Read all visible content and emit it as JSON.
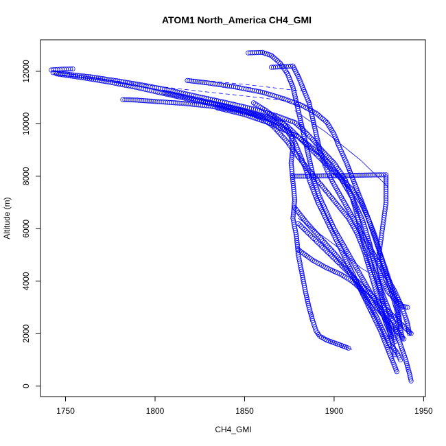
{
  "chart_data": {
    "type": "scatter",
    "title": "ATOM1 North_America CH4_GMI",
    "xlabel": "CH4_GMI",
    "ylabel": "Altitude (m)",
    "xlim": [
      1736,
      1951
    ],
    "ylim": [
      -400,
      13200
    ],
    "xticks": [
      1750,
      1800,
      1850,
      1900,
      1950
    ],
    "yticks": [
      0,
      2000,
      4000,
      6000,
      8000,
      10000,
      12000
    ],
    "grid": false,
    "marker": "open-circle",
    "colors": {
      "series": "#0000ff",
      "axes": "#000000"
    },
    "series": [
      {
        "points": [
          [
            1743,
            11950
          ],
          [
            1752,
            11880
          ],
          [
            1765,
            11780
          ],
          [
            1780,
            11620
          ],
          [
            1795,
            11450
          ],
          [
            1810,
            11250
          ],
          [
            1825,
            11020
          ],
          [
            1840,
            10800
          ],
          [
            1855,
            10560
          ],
          [
            1868,
            10300
          ],
          [
            1878,
            10050
          ],
          [
            1883,
            9750
          ],
          [
            1888,
            9400
          ],
          [
            1893,
            9000
          ],
          [
            1900,
            8500
          ],
          [
            1906,
            7900
          ],
          [
            1910,
            7200
          ],
          [
            1913,
            6500
          ],
          [
            1915,
            5800
          ],
          [
            1918,
            5100
          ],
          [
            1922,
            4400
          ],
          [
            1926,
            3700
          ],
          [
            1930,
            3000
          ],
          [
            1934,
            2300
          ],
          [
            1937,
            1600
          ],
          [
            1940,
            1000
          ],
          [
            1942,
            500
          ],
          [
            1943,
            200
          ]
        ]
      },
      {
        "points": [
          [
            1742,
            12050
          ],
          [
            1748,
            12080
          ],
          [
            1754,
            12090
          ]
        ]
      },
      {
        "points": [
          [
            1745,
            11900
          ],
          [
            1760,
            11750
          ],
          [
            1775,
            11580
          ],
          [
            1790,
            11380
          ],
          [
            1805,
            11150
          ],
          [
            1820,
            10920
          ],
          [
            1835,
            10700
          ],
          [
            1850,
            10480
          ],
          [
            1862,
            10250
          ],
          [
            1872,
            10000
          ],
          [
            1876,
            9600
          ],
          [
            1877,
            9100
          ],
          [
            1876,
            8500
          ],
          [
            1877,
            7800
          ],
          [
            1878,
            7100
          ],
          [
            1877,
            6400
          ],
          [
            1879,
            5700
          ],
          [
            1880,
            5000
          ],
          [
            1882,
            4300
          ],
          [
            1884,
            3600
          ],
          [
            1886,
            3000
          ],
          [
            1888,
            2500
          ],
          [
            1890,
            2100
          ],
          [
            1892,
            1900
          ],
          [
            1896,
            1750
          ],
          [
            1902,
            1600
          ],
          [
            1908,
            1450
          ]
        ]
      },
      {
        "points": [
          [
            1782,
            10920
          ],
          [
            1790,
            10900
          ],
          [
            1800,
            10850
          ],
          [
            1815,
            10780
          ],
          [
            1830,
            10680
          ],
          [
            1845,
            10520
          ],
          [
            1858,
            10300
          ],
          [
            1868,
            10050
          ],
          [
            1874,
            9700
          ],
          [
            1878,
            9300
          ],
          [
            1881,
            8800
          ],
          [
            1884,
            8300
          ],
          [
            1887,
            7700
          ],
          [
            1891,
            7000
          ],
          [
            1896,
            6300
          ],
          [
            1901,
            5600
          ],
          [
            1906,
            4900
          ],
          [
            1911,
            4200
          ],
          [
            1916,
            3500
          ],
          [
            1921,
            2800
          ],
          [
            1926,
            2100
          ],
          [
            1930,
            1400
          ],
          [
            1933,
            900
          ],
          [
            1935,
            550
          ]
        ]
      },
      {
        "points": [
          [
            1805,
            11200
          ],
          [
            1815,
            11050
          ],
          [
            1825,
            10900
          ],
          [
            1838,
            10700
          ],
          [
            1850,
            10500
          ],
          [
            1860,
            10200
          ],
          [
            1866,
            9900
          ],
          [
            1870,
            9600
          ],
          [
            1874,
            9300
          ],
          [
            1878,
            8900
          ],
          [
            1884,
            8400
          ],
          [
            1890,
            7900
          ],
          [
            1896,
            7400
          ],
          [
            1902,
            6900
          ],
          [
            1908,
            6400
          ],
          [
            1913,
            5800
          ],
          [
            1917,
            5100
          ],
          [
            1920,
            4400
          ],
          [
            1923,
            3700
          ],
          [
            1926,
            3000
          ],
          [
            1929,
            2400
          ],
          [
            1932,
            1900
          ]
        ]
      },
      {
        "points": [
          [
            1818,
            11650
          ],
          [
            1830,
            11550
          ],
          [
            1845,
            11400
          ],
          [
            1860,
            11200
          ],
          [
            1872,
            10950
          ],
          [
            1882,
            10700
          ],
          [
            1890,
            10400
          ],
          [
            1896,
            10050
          ],
          [
            1900,
            9600
          ],
          [
            1903,
            9100
          ],
          [
            1907,
            8500
          ],
          [
            1911,
            7800
          ],
          [
            1915,
            7100
          ],
          [
            1919,
            6400
          ],
          [
            1923,
            5700
          ],
          [
            1926,
            5000
          ],
          [
            1929,
            4300
          ],
          [
            1932,
            3600
          ],
          [
            1935,
            2900
          ],
          [
            1937,
            2300
          ],
          [
            1938,
            1800
          ]
        ]
      },
      {
        "points": [
          [
            1852,
            12700
          ],
          [
            1860,
            12720
          ],
          [
            1865,
            12600
          ],
          [
            1870,
            12300
          ],
          [
            1874,
            11900
          ],
          [
            1877,
            11400
          ],
          [
            1879,
            10800
          ],
          [
            1881,
            10200
          ],
          [
            1883,
            9600
          ],
          [
            1885,
            9000
          ],
          [
            1887,
            8400
          ],
          [
            1889,
            7800
          ],
          [
            1892,
            7200
          ],
          [
            1896,
            6600
          ],
          [
            1900,
            6000
          ],
          [
            1905,
            5400
          ],
          [
            1910,
            4800
          ],
          [
            1915,
            4200
          ],
          [
            1920,
            3600
          ],
          [
            1925,
            3000
          ],
          [
            1929,
            2500
          ],
          [
            1932,
            2100
          ],
          [
            1934,
            1700
          ]
        ]
      },
      {
        "points": [
          [
            1865,
            12150
          ],
          [
            1872,
            12180
          ],
          [
            1877,
            12200
          ],
          [
            1880,
            11800
          ],
          [
            1883,
            11300
          ],
          [
            1886,
            10800
          ],
          [
            1888,
            10200
          ],
          [
            1890,
            9600
          ],
          [
            1892,
            9000
          ],
          [
            1895,
            8400
          ],
          [
            1899,
            7800
          ],
          [
            1904,
            7200
          ],
          [
            1909,
            6600
          ],
          [
            1914,
            6000
          ],
          [
            1919,
            5400
          ],
          [
            1924,
            4800
          ],
          [
            1929,
            4200
          ],
          [
            1934,
            3600
          ],
          [
            1938,
            3000
          ],
          [
            1941,
            2400
          ],
          [
            1942,
            2000
          ]
        ]
      },
      {
        "points": [
          [
            1877,
            8000
          ],
          [
            1885,
            8000
          ],
          [
            1895,
            8020
          ],
          [
            1905,
            8020
          ],
          [
            1915,
            8040
          ],
          [
            1925,
            8050
          ],
          [
            1929,
            8050
          ],
          [
            1929,
            7500
          ],
          [
            1929,
            7000
          ],
          [
            1928,
            6500
          ],
          [
            1927,
            6000
          ],
          [
            1926,
            5500
          ],
          [
            1925,
            5000
          ],
          [
            1925,
            4500
          ],
          [
            1927,
            4000
          ],
          [
            1930,
            3600
          ],
          [
            1934,
            3300
          ],
          [
            1938,
            3050
          ],
          [
            1941,
            3000
          ]
        ]
      },
      {
        "points": [
          [
            1855,
            10800
          ],
          [
            1862,
            10500
          ],
          [
            1868,
            10200
          ],
          [
            1874,
            9900
          ],
          [
            1880,
            9500
          ],
          [
            1886,
            9100
          ],
          [
            1892,
            8700
          ],
          [
            1898,
            8300
          ],
          [
            1904,
            7900
          ],
          [
            1910,
            7500
          ],
          [
            1915,
            7000
          ],
          [
            1919,
            6400
          ],
          [
            1922,
            5800
          ],
          [
            1925,
            5200
          ],
          [
            1928,
            4600
          ],
          [
            1931,
            4000
          ],
          [
            1934,
            3400
          ],
          [
            1936,
            2800
          ],
          [
            1937,
            2200
          ]
        ]
      },
      {
        "points": [
          [
            1878,
            6800
          ],
          [
            1885,
            6200
          ],
          [
            1893,
            5600
          ],
          [
            1901,
            5000
          ],
          [
            1908,
            4400
          ],
          [
            1914,
            3800
          ],
          [
            1919,
            3200
          ],
          [
            1924,
            2600
          ],
          [
            1928,
            2000
          ],
          [
            1931,
            1600
          ],
          [
            1935,
            1300
          ],
          [
            1937,
            1000
          ]
        ]
      },
      {
        "points": [
          [
            1880,
            5200
          ],
          [
            1888,
            4800
          ],
          [
            1896,
            4500
          ],
          [
            1904,
            4250
          ],
          [
            1910,
            4000
          ],
          [
            1915,
            3700
          ],
          [
            1920,
            3300
          ],
          [
            1925,
            2900
          ],
          [
            1930,
            2500
          ],
          [
            1935,
            2100
          ],
          [
            1939,
            1800
          ]
        ]
      },
      {
        "points": [
          [
            1880,
            6200
          ],
          [
            1886,
            5800
          ],
          [
            1892,
            5400
          ],
          [
            1898,
            5000
          ],
          [
            1904,
            4600
          ],
          [
            1910,
            4200
          ],
          [
            1916,
            3800
          ],
          [
            1922,
            3400
          ],
          [
            1928,
            3000
          ],
          [
            1934,
            2600
          ],
          [
            1940,
            2200
          ],
          [
            1943,
            2000
          ]
        ]
      },
      {
        "points": [
          [
            1835,
            10600
          ],
          [
            1850,
            10350
          ],
          [
            1865,
            10000
          ],
          [
            1880,
            9500
          ],
          [
            1893,
            8800
          ],
          [
            1903,
            8000
          ],
          [
            1910,
            7200
          ],
          [
            1916,
            6300
          ],
          [
            1920,
            5400
          ],
          [
            1923,
            4500
          ],
          [
            1926,
            3600
          ],
          [
            1929,
            2700
          ],
          [
            1932,
            1800
          ],
          [
            1934,
            1200
          ]
        ]
      }
    ],
    "lines": [
      {
        "points": [
          [
            1748,
            11860
          ],
          [
            1775,
            11660
          ],
          [
            1800,
            11440
          ],
          [
            1825,
            11240
          ],
          [
            1850,
            11060
          ],
          [
            1870,
            10900
          ],
          [
            1876,
            10850
          ]
        ]
      },
      {
        "points": [
          [
            1820,
            11700
          ],
          [
            1850,
            11500
          ],
          [
            1875,
            11300
          ],
          [
            1882,
            11250
          ]
        ]
      },
      {
        "points": [
          [
            1880,
            6400
          ],
          [
            1900,
            5400
          ],
          [
            1915,
            4500
          ],
          [
            1920,
            4300
          ]
        ]
      },
      {
        "points": [
          [
            1890,
            2000
          ],
          [
            1900,
            1650
          ],
          [
            1910,
            1400
          ]
        ]
      },
      {
        "points": [
          [
            1878,
            10500
          ],
          [
            1895,
            9700
          ],
          [
            1915,
            8600
          ],
          [
            1930,
            7600
          ]
        ]
      }
    ]
  }
}
